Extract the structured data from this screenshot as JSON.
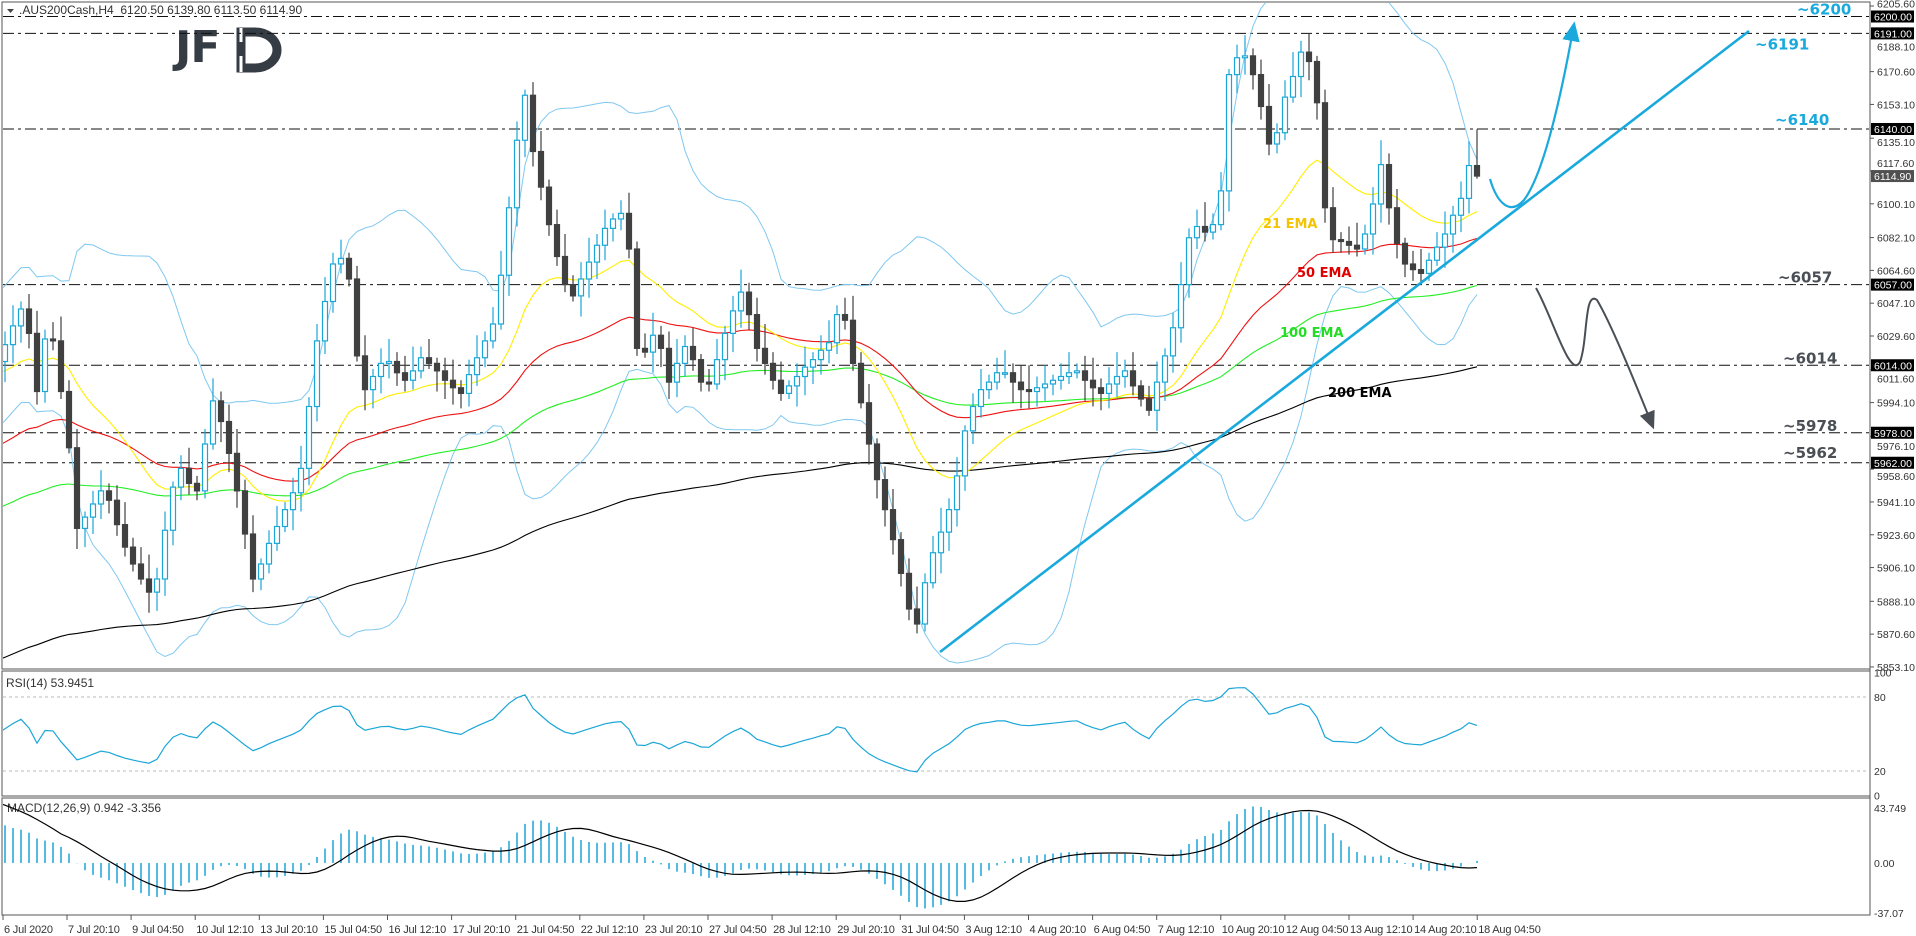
{
  "header": {
    "symbol_line": ".AUS200Cash,H4  6120.50 6139.80 6113.50 6114.90",
    "menu_icon": "triangle-down-icon"
  },
  "logo": {
    "text": "JFD"
  },
  "colors": {
    "bull": "#1ba6d8",
    "bear": "#404040",
    "ema21": "#ffee00",
    "ema50": "#ee1111",
    "ema100": "#22ee22",
    "ema200": "#000000",
    "bollinger": "#80c8f0",
    "annotation_blue": "#19a9dd",
    "annotation_grey": "#4a4f55"
  },
  "chart_data": [
    {
      "type": "candlestick",
      "title": ".AUS200Cash,H4",
      "last_bar": {
        "open": 6120.5,
        "high": 6139.8,
        "low": 6113.5,
        "close": 6114.9
      },
      "ylim": [
        5853.1,
        6205.6
      ],
      "y_ticks": [
        "6205.60",
        "6188.10",
        "6170.60",
        "6153.10",
        "6135.10",
        "6117.60",
        "6100.10",
        "6082.10",
        "6064.60",
        "6047.10",
        "6029.60",
        "6011.60",
        "5994.10",
        "5976.10",
        "5958.60",
        "5941.10",
        "5923.60",
        "5906.10",
        "5888.10",
        "5870.60",
        "5853.10"
      ],
      "x_ticks": [
        "6 Jul 2020",
        "7 Jul 20:10",
        "9 Jul 04:50",
        "10 Jul 12:10",
        "13 Jul 20:10",
        "15 Jul 04:50",
        "16 Jul 12:10",
        "17 Jul 20:10",
        "21 Jul 04:50",
        "22 Jul 12:10",
        "23 Jul 20:10",
        "27 Jul 04:50",
        "28 Jul 12:10",
        "29 Jul 20:10",
        "31 Jul 04:50",
        "3 Aug 12:10",
        "4 Aug 20:10",
        "6 Aug 04:50",
        "7 Aug 12:10",
        "10 Aug 20:10",
        "12 Aug 04:50",
        "13 Aug 12:10",
        "14 Aug 20:10",
        "18 Aug 04:50"
      ],
      "closes": [
        6016,
        6025,
        6035,
        6044,
        6031,
        6000,
        6028,
        6027,
        6000,
        5970,
        5927,
        5933,
        5940,
        5947,
        5942,
        5929,
        5917,
        5908,
        5900,
        5893,
        5900,
        5926,
        5949,
        5959,
        5951,
        5947,
        5972,
        5995,
        5984,
        5967,
        5947,
        5924,
        5900,
        5908,
        5919,
        5928,
        5937,
        5946,
        5959,
        5992,
        6027,
        6048,
        6068,
        6071,
        6060,
        6019,
        6001,
        6008,
        6015,
        6016,
        6010,
        6006,
        6011,
        6018,
        6015,
        6011,
        6006,
        6002,
        5999,
        6009,
        6018,
        6027,
        6036,
        6062,
        6098,
        6134,
        6158,
        6128,
        6109,
        6089,
        6072,
        6057,
        6051,
        6060,
        6069,
        6078,
        6087,
        6092,
        6095,
        6076,
        6023,
        6021,
        6030,
        6023,
        6005,
        6015,
        6024,
        6017,
        6005,
        6004,
        6017,
        6031,
        6043,
        6053,
        6041,
        6023,
        6015,
        6006,
        5999,
        6003,
        6008,
        6013,
        6017,
        6022,
        6026,
        6041,
        6038,
        6015,
        5994,
        5972,
        5953,
        5937,
        5921,
        5903,
        5884,
        5876,
        5898,
        5914,
        5925,
        5937,
        5955,
        5979,
        5992,
        6001,
        6005,
        6010,
        6010,
        6005,
        6001,
        6000,
        6002,
        6004,
        6006,
        6008,
        6010,
        6011,
        6006,
        6002,
        5999,
        6004,
        6008,
        6011,
        6003,
        5996,
        5990,
        6005,
        6019,
        6034,
        6057,
        6082,
        6088,
        6085,
        6089,
        6107,
        6169,
        6178,
        6179,
        6169,
        6152,
        6132,
        6138,
        6157,
        6168,
        6181,
        6176,
        6154,
        6098,
        6081,
        6080,
        6078,
        6076,
        6084,
        6100,
        6121,
        6098,
        6079,
        6068,
        6065,
        6063,
        6070,
        6077,
        6084,
        6094,
        6103,
        6120.5,
        6114.9
      ],
      "indicators_on_price": [
        "EMA 21",
        "EMA 50",
        "EMA 100",
        "EMA 200",
        "Bollinger Bands"
      ],
      "ema_labels": {
        "ema21": "21 EMA",
        "ema50": "50 EMA",
        "ema100": "100 EMA",
        "ema200": "200 EMA"
      },
      "levels": [
        {
          "value": 6200,
          "label": "~6200",
          "tag": "6200.00",
          "color": "blue"
        },
        {
          "value": 6191,
          "label": "~6191",
          "tag": "6191.00",
          "color": "blue"
        },
        {
          "value": 6140,
          "label": "~6140",
          "tag": "6140.00",
          "color": "blue"
        },
        {
          "value": 6057,
          "label": "~6057",
          "tag": "6057.00",
          "color": "grey"
        },
        {
          "value": 6014,
          "label": "~6014",
          "tag": "6014.00",
          "color": "grey"
        },
        {
          "value": 5978,
          "label": "~5978",
          "tag": "5978.00",
          "color": "grey"
        },
        {
          "value": 5962,
          "label": "~5962",
          "tag": "5962.00",
          "color": "grey"
        }
      ],
      "current_price_tag": "6114.90",
      "annotations": [
        "uptrend-line",
        "bullish-scenario-arrow",
        "bearish-scenario-arrow"
      ]
    },
    {
      "type": "line",
      "title": "RSI(14) 53.9451",
      "ylim": [
        0,
        100
      ],
      "y_ticks": [
        "100",
        "80",
        "20",
        "0"
      ],
      "levels": [
        80,
        20
      ]
    },
    {
      "type": "bar+line",
      "title": "MACD(12,26,9) 0.942 -3.356",
      "ylim": [
        -37.07,
        43.749
      ],
      "y_ticks": [
        "43.749",
        "0.00",
        "-37.07"
      ]
    }
  ]
}
